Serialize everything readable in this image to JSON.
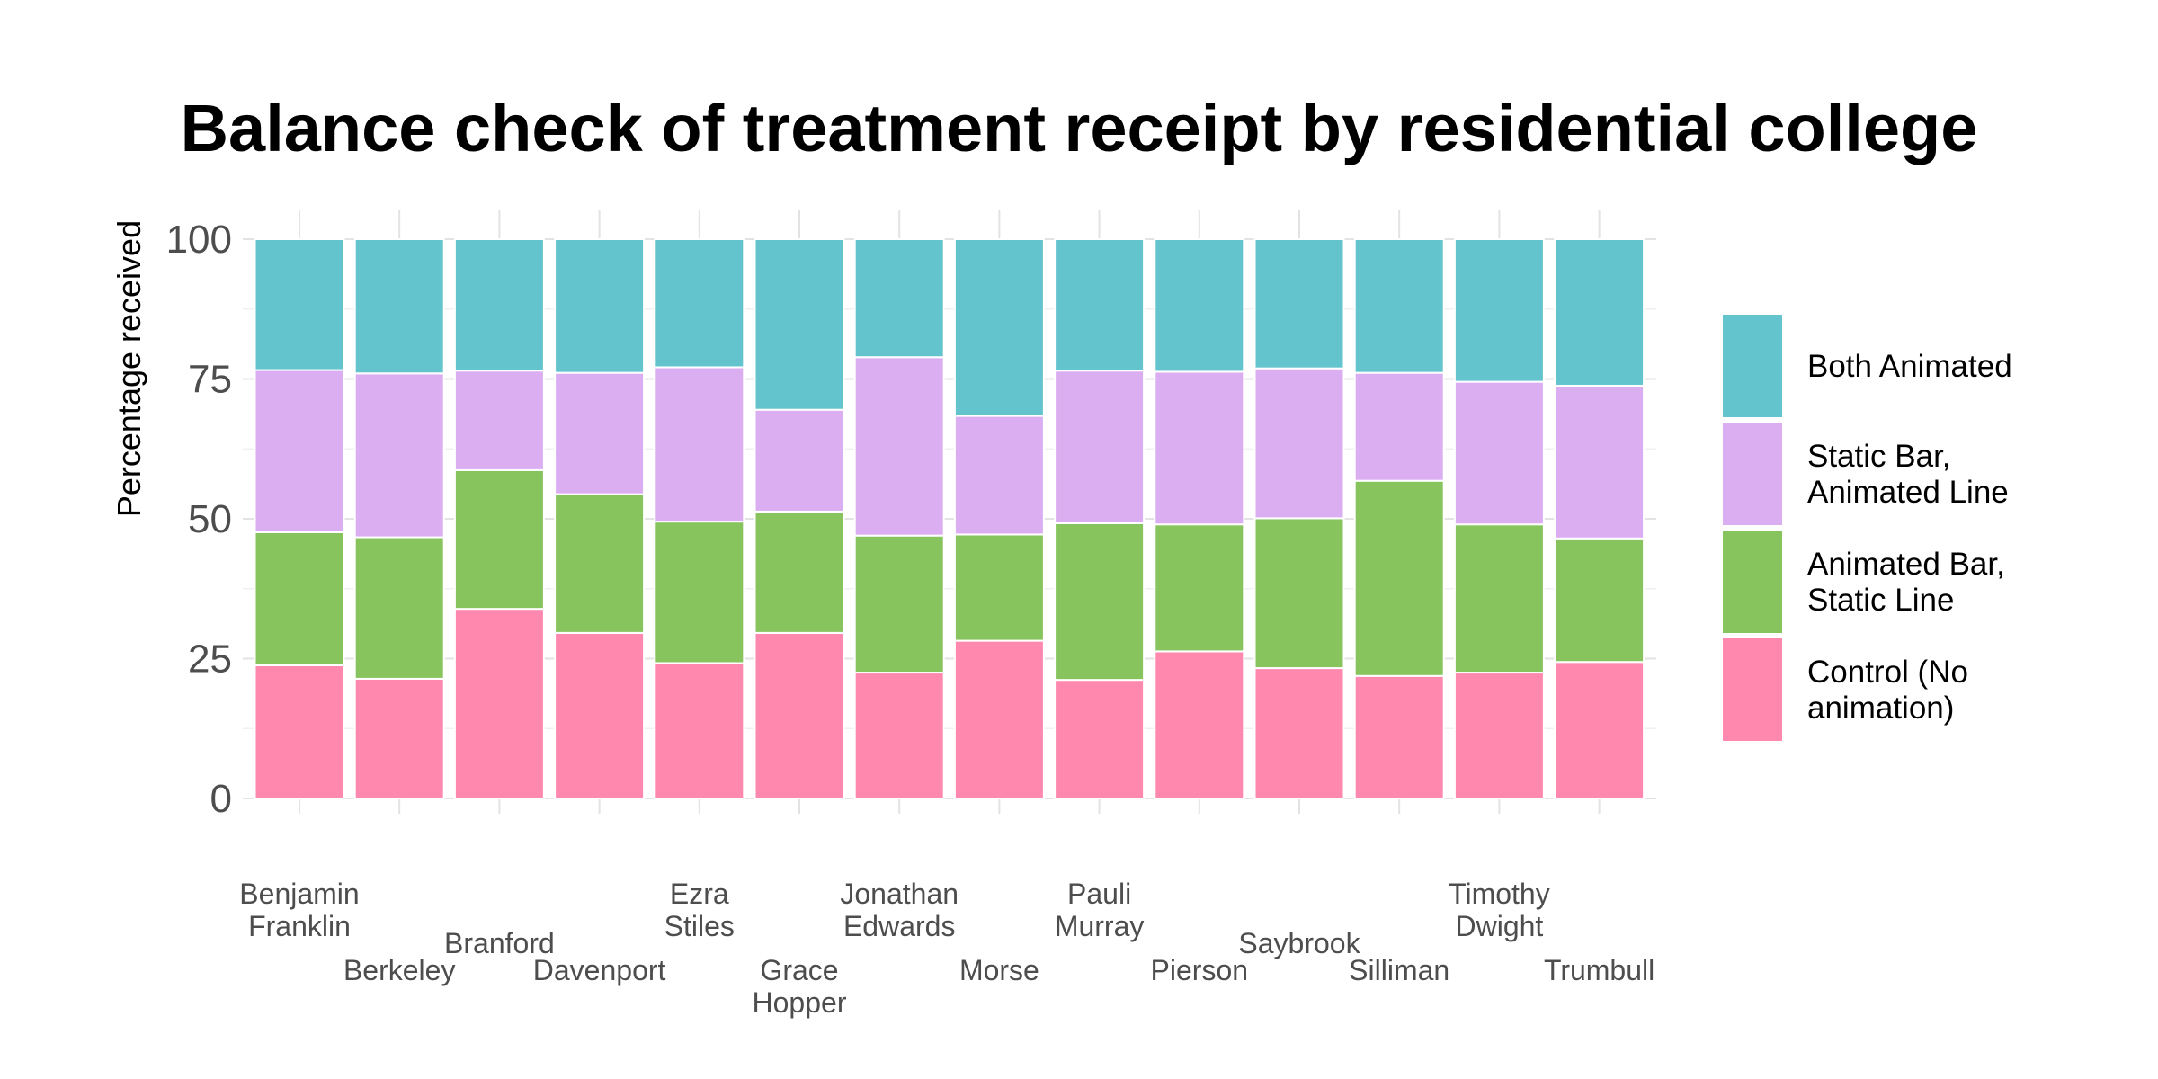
{
  "chart_data": {
    "type": "bar",
    "stacked": true,
    "title": "Balance check of treatment receipt by residential college",
    "xlabel": "",
    "ylabel": "Percentage received",
    "ylim": [
      0,
      100
    ],
    "yticks": [
      0,
      25,
      50,
      75,
      100
    ],
    "grid": true,
    "legend_position": "right",
    "categories": [
      "Benjamin\nFranklin",
      "Berkeley",
      "Branford",
      "Davenport",
      "Ezra\nStiles",
      "Grace\nHopper",
      "Jonathan\nEdwards",
      "Morse",
      "Pauli\nMurray",
      "Pierson",
      "Saybrook",
      "Silliman",
      "Timothy\nDwight",
      "Trumbull"
    ],
    "series": [
      {
        "name": "Control (No\nanimation)",
        "color": "#FF88AF",
        "values": [
          23.8,
          21.4,
          33.9,
          29.6,
          24.2,
          29.6,
          22.5,
          28.2,
          21.2,
          26.3,
          23.3,
          21.9,
          22.5,
          24.4
        ]
      },
      {
        "name": "Animated Bar,\nStatic Line",
        "color": "#88C45E",
        "values": [
          23.8,
          25.3,
          24.8,
          24.8,
          25.3,
          21.7,
          24.5,
          19.0,
          28.0,
          22.7,
          26.8,
          34.9,
          26.5,
          22.1
        ]
      },
      {
        "name": "Static Bar,\nAnimated Line",
        "color": "#DBAEF2",
        "values": [
          29.0,
          29.3,
          17.8,
          21.7,
          27.6,
          18.2,
          31.9,
          21.2,
          27.3,
          27.3,
          26.8,
          19.3,
          25.5,
          27.3
        ]
      },
      {
        "name": "Both Animated",
        "color": "#64C4CD",
        "values": [
          23.4,
          24.0,
          23.5,
          23.9,
          22.9,
          30.5,
          21.1,
          31.6,
          23.5,
          23.7,
          23.1,
          23.9,
          25.5,
          26.2
        ]
      }
    ]
  }
}
